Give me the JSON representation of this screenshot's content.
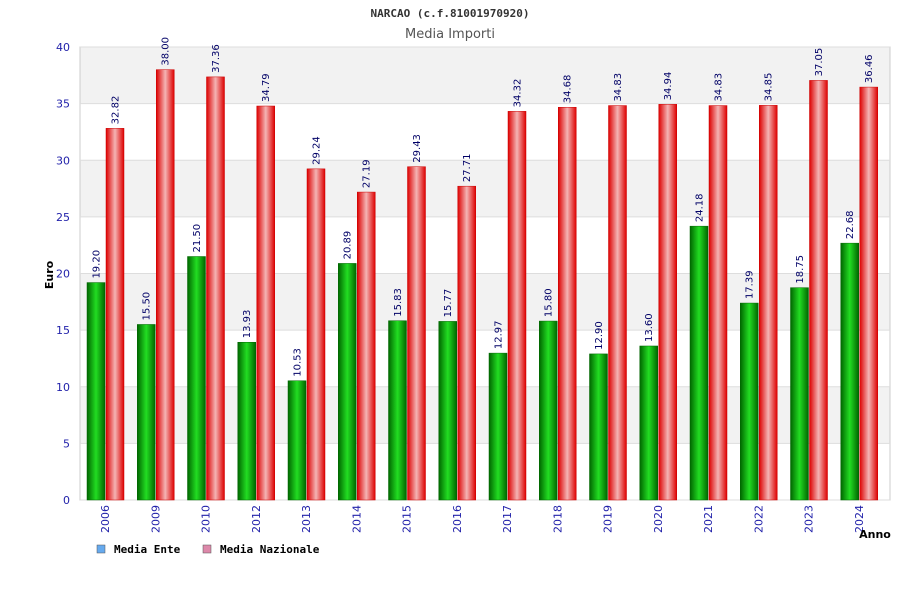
{
  "chart_data": {
    "type": "bar",
    "title": "NARCAO (c.f.81001970920)",
    "subtitle": "Media Importi",
    "xlabel": "Anno",
    "ylabel": "Euro",
    "ylim": [
      0,
      40
    ],
    "yticks": [
      0,
      5,
      10,
      15,
      20,
      25,
      30,
      35,
      40
    ],
    "grid": true,
    "legend_position": "bottom-left",
    "categories": [
      "2006",
      "2009",
      "2010",
      "2012",
      "2013",
      "2014",
      "2015",
      "2016",
      "2017",
      "2018",
      "2019",
      "2020",
      "2021",
      "2022",
      "2023",
      "2024"
    ],
    "series": [
      {
        "name": "Media Ente",
        "color": "#00aa00",
        "legend_color": "#66aaee",
        "values": [
          19.2,
          15.5,
          21.5,
          13.93,
          10.53,
          20.89,
          15.83,
          15.77,
          12.97,
          15.8,
          12.9,
          13.6,
          24.18,
          17.39,
          18.75,
          22.68
        ],
        "labels": [
          "19.20",
          "15.50",
          "21.50",
          "13.93",
          "10.53",
          "20.89",
          "15.83",
          "15.77",
          "12.97",
          "15.80",
          "12.90",
          "13.60",
          "24.18",
          "17.39",
          "18.75",
          "22.68"
        ]
      },
      {
        "name": "Media Nazionale",
        "color": "#ee1111",
        "legend_color": "#dd88aa",
        "values": [
          32.82,
          38.0,
          37.36,
          34.79,
          29.24,
          27.19,
          29.43,
          27.71,
          34.32,
          34.68,
          34.83,
          34.94,
          34.83,
          34.85,
          37.05,
          36.46
        ],
        "labels": [
          "32.82",
          "38.00",
          "37.36",
          "34.79",
          "29.24",
          "27.19",
          "29.43",
          "27.71",
          "34.32",
          "34.68",
          "34.83",
          "34.94",
          "34.83",
          "34.85",
          "37.05",
          "36.46"
        ]
      }
    ]
  }
}
